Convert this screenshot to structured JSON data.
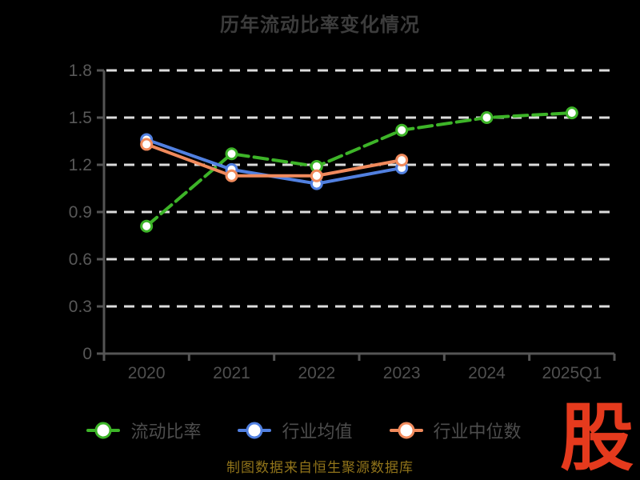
{
  "title": "历年流动比率变化情况",
  "source_note": "制图数据来自恒生聚源数据库",
  "logo_text": "股",
  "colors": {
    "background": "#000000",
    "title_text": "#3c3c3c",
    "axis": "#555555",
    "grid": "#dcdcdc",
    "y_tick_label": "#585858",
    "x_tick_label": "#4f4f4f",
    "legend_label": "#4d4d4d",
    "source_text": "#91741a",
    "logo": "#e53a1d",
    "marker_fill": "#ffffff"
  },
  "chart_data": {
    "type": "line",
    "title": "历年流动比率变化情况",
    "categories": [
      "2020",
      "2021",
      "2022",
      "2023",
      "2024",
      "2025Q1"
    ],
    "series": [
      {
        "name": "流动比率",
        "color": "#3db428",
        "line_style": "dashed",
        "values": [
          0.81,
          1.27,
          1.19,
          1.42,
          1.5,
          1.53
        ]
      },
      {
        "name": "行业均值",
        "color": "#5180e0",
        "line_style": "solid",
        "values": [
          1.36,
          1.17,
          1.08,
          1.18,
          null,
          null
        ]
      },
      {
        "name": "行业中位数",
        "color": "#f08a5c",
        "line_style": "solid",
        "values": [
          1.33,
          1.13,
          1.13,
          1.23,
          null,
          null
        ]
      }
    ],
    "xlabel": "",
    "ylabel": "",
    "ylim": [
      0,
      1.8
    ],
    "y_ticks": [
      0,
      0.3,
      0.6,
      0.9,
      1.2,
      1.5,
      1.8
    ],
    "y_tick_labels": [
      "0",
      "0.3",
      "0.6",
      "0.9",
      "1.2",
      "1.5",
      "1.8"
    ],
    "grid": "horizontal dashed white lines",
    "legend_position": "bottom",
    "marker": "white-filled circle with colored ring"
  }
}
